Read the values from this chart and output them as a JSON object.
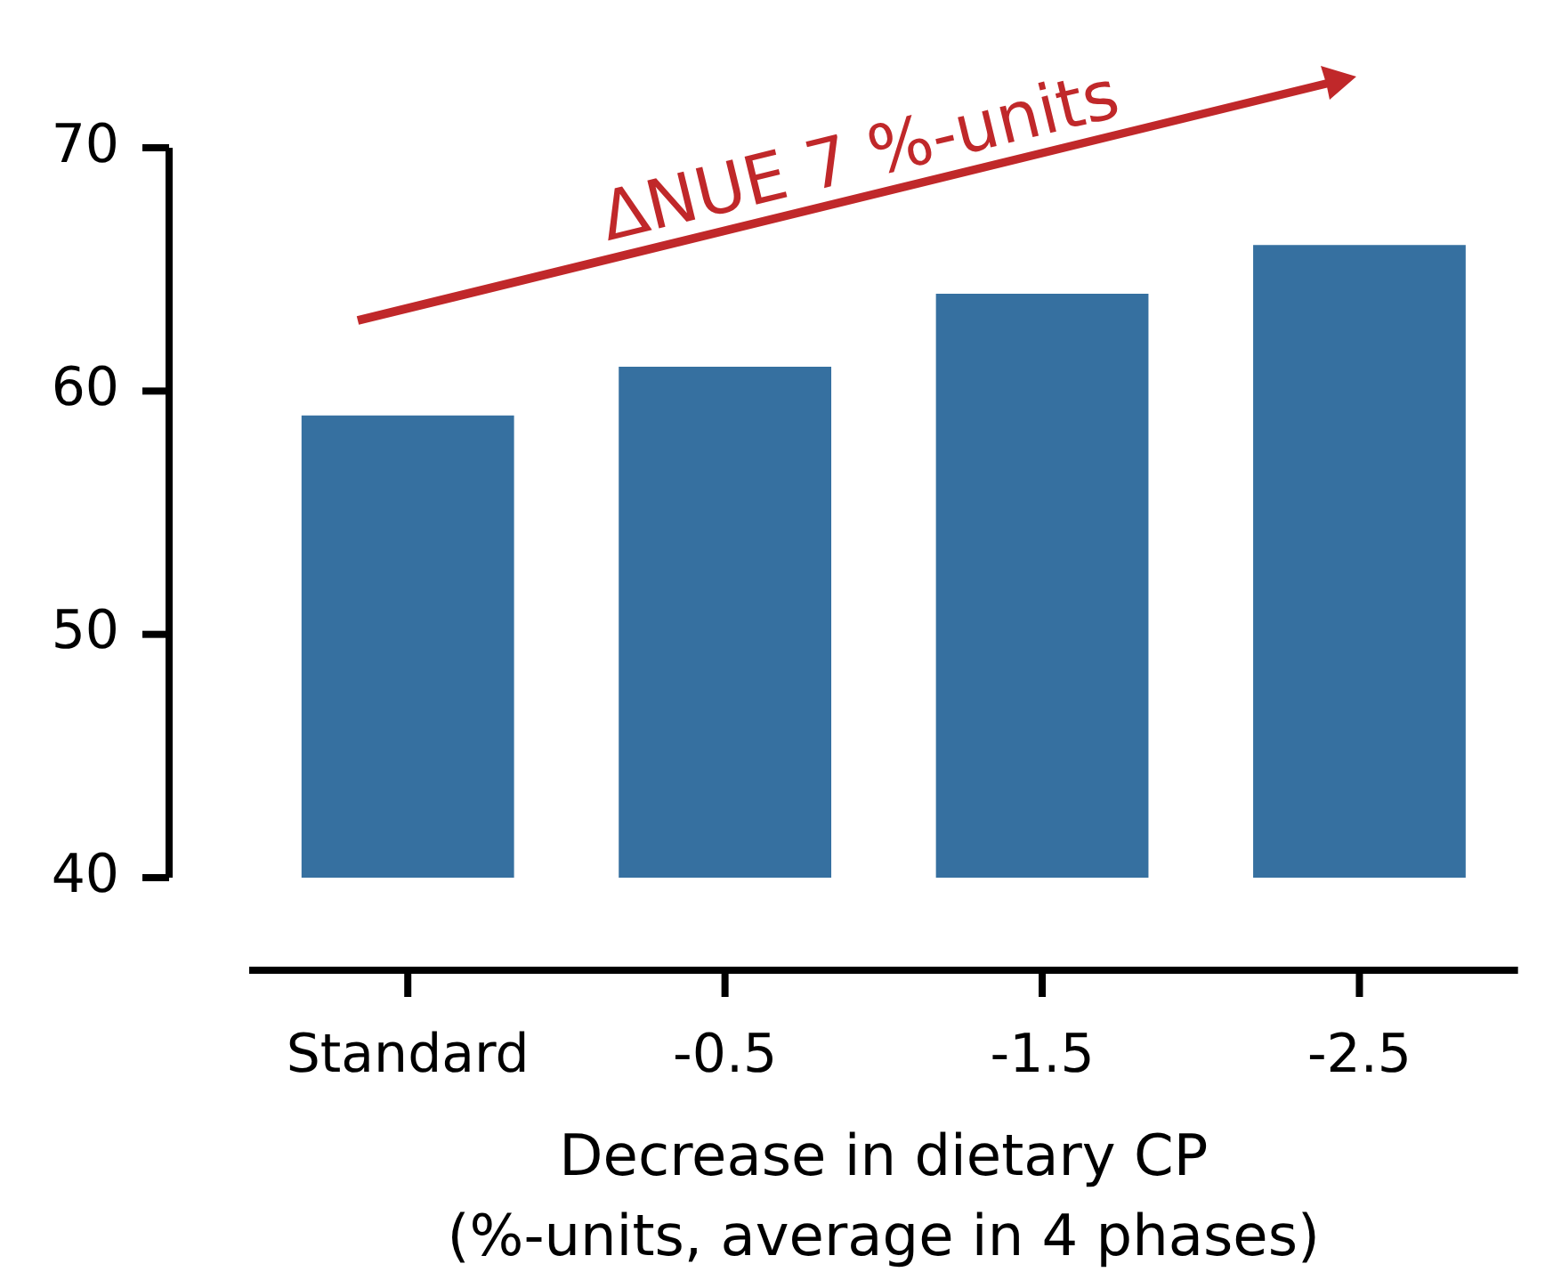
{
  "chart_data": {
    "type": "bar",
    "xlabel": "Decrease in dietary CP\n(%-units, average in 4 phases)",
    "categories": [
      "Standard",
      "-0.5",
      "-1.5",
      "-2.5"
    ],
    "values": [
      59,
      61,
      64,
      66
    ],
    "color": "#3670a0",
    "ylim": [
      40,
      70
    ],
    "yticks": [
      40,
      50,
      60,
      70
    ],
    "grid": false,
    "legend": false,
    "annotations": [
      "ΔNUE 7 %-units"
    ]
  }
}
